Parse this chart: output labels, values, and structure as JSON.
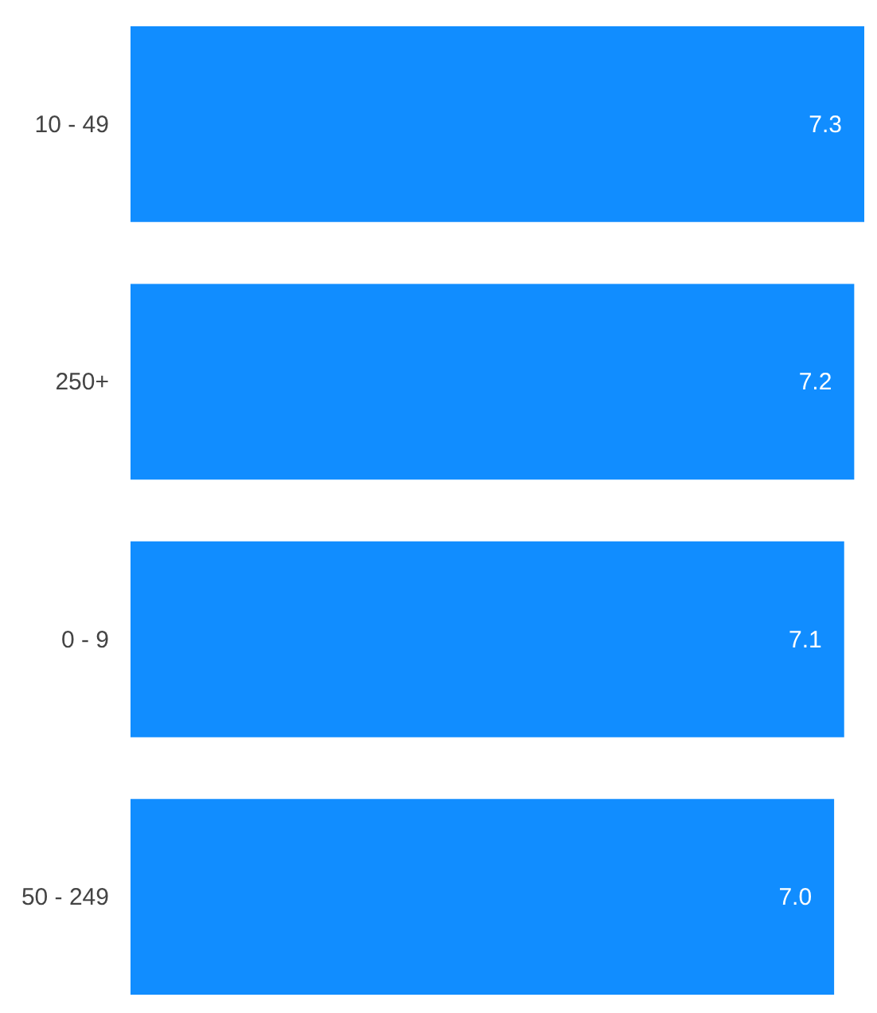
{
  "chart_data": {
    "type": "bar",
    "orientation": "horizontal",
    "categories": [
      "10 - 49",
      "250+",
      "0 - 9",
      "50 - 249"
    ],
    "values": [
      7.3,
      7.2,
      7.1,
      7.0
    ],
    "value_labels": [
      "7.3",
      "7.2",
      "7.1",
      "7.0"
    ],
    "color": "#118dff",
    "tick_labels": "y"
  }
}
